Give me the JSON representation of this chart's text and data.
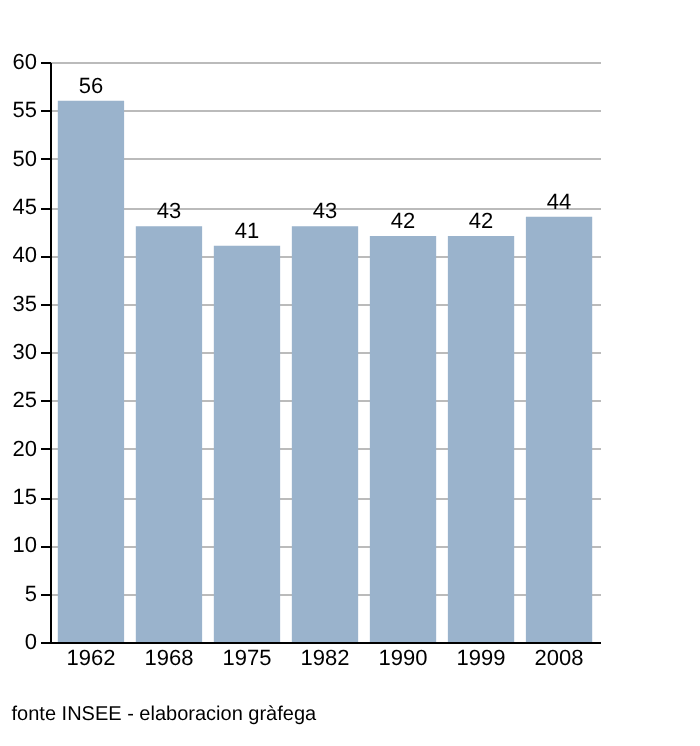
{
  "chart_data": {
    "type": "bar",
    "categories": [
      "1962",
      "1968",
      "1975",
      "1982",
      "1990",
      "1999",
      "2008"
    ],
    "values": [
      56,
      43,
      41,
      43,
      42,
      42,
      44
    ],
    "color": "#9ab3cc",
    "ylim": [
      0,
      60
    ],
    "yticks": [
      0,
      5,
      10,
      15,
      20,
      25,
      30,
      35,
      40,
      45,
      50,
      55,
      60
    ],
    "grid": "y",
    "data_labels": true,
    "annotations": [
      "fonte INSEE - elaboracion gràfega"
    ]
  }
}
